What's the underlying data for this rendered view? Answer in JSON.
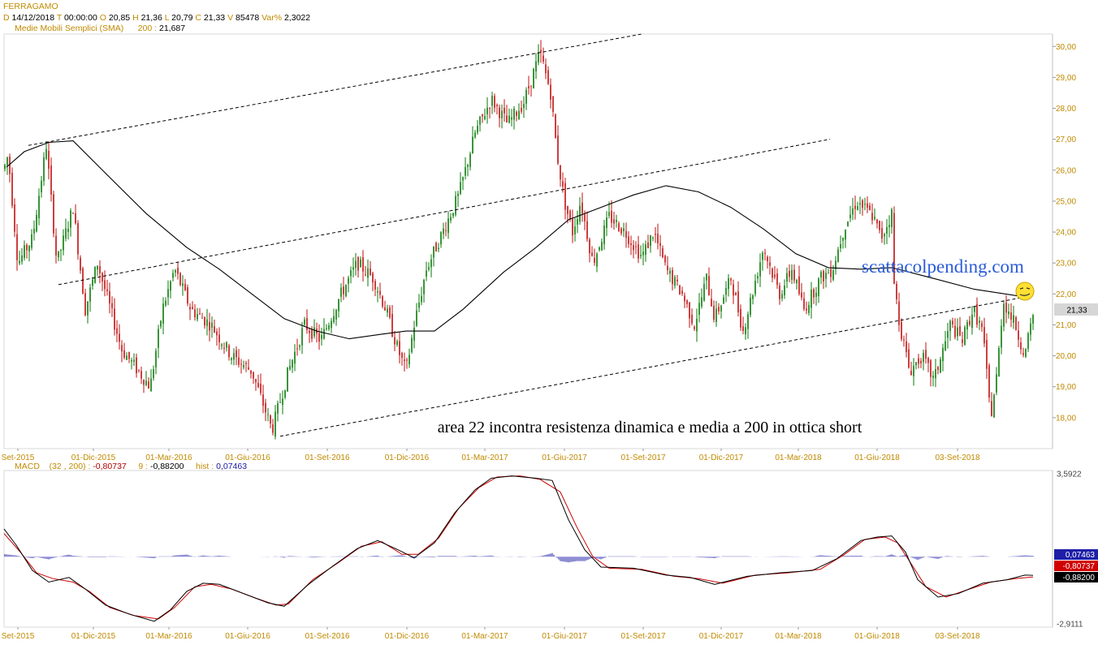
{
  "header": {
    "instrument": "FERRAGAMO",
    "date_label": "D",
    "date": "14/12/2018",
    "time_label": "T",
    "time": "00:00:00",
    "open_label": "O",
    "open": "20,85",
    "high_label": "H",
    "high": "21,36",
    "low_label": "L",
    "low": "20,79",
    "close_label": "C",
    "close": "21,33",
    "volume_label": "V",
    "volume": "85478",
    "var_label": "Var%",
    "var": "2,3022",
    "sma_label": "Medie Mobili Semplici (SMA)",
    "sma_period": "200 :",
    "sma_value": "21,687"
  },
  "macd_header": {
    "name": "MACD",
    "params": "(32 , 200) :",
    "macd_value": "-0,80737",
    "signal_period": "9 :",
    "signal_value": "-0,88200",
    "hist_label": "hist :",
    "hist_value": "0,07463"
  },
  "watermark": "scattacolpending.com",
  "annotation": "area 22 incontra resistenza dinamica e media a 200 in ottica short",
  "colors": {
    "up": "#0a7a0a",
    "down": "#c01010",
    "axis_label": "#c08a00",
    "hist": "#1e1ea8",
    "watermark": "#2a5bd8",
    "marker": "#ffe033"
  },
  "chart_data": [
    {
      "type": "candlestick",
      "title": "FERRAGAMO",
      "ylim": [
        17.0,
        30.4
      ],
      "y_ticks": [
        "18,00",
        "19,00",
        "20,00",
        "21,00",
        "22,00",
        "23,00",
        "24,00",
        "25,00",
        "26,00",
        "27,00",
        "28,00",
        "29,00",
        "30,00"
      ],
      "x_ticks": [
        "Set-2015",
        "01-Dic-2015",
        "01-Mar-2016",
        "01-Giu-2016",
        "01-Set-2016",
        "01-Dic-2016",
        "01-Mar-2017",
        "01-Giu-2017",
        "01-Set-2017",
        "01-Dic-2017",
        "01-Mar-2018",
        "01-Giu-2018",
        "03-Set-2018"
      ],
      "last_price_label": "21,33",
      "price_path": [
        [
          0,
          25.6
        ],
        [
          10,
          26.5
        ],
        [
          22,
          23.0
        ],
        [
          40,
          23.8
        ],
        [
          57,
          26.8
        ],
        [
          70,
          23.0
        ],
        [
          90,
          24.8
        ],
        [
          105,
          21.5
        ],
        [
          120,
          23.0
        ],
        [
          150,
          20.2
        ],
        [
          185,
          19.0
        ],
        [
          200,
          21.5
        ],
        [
          215,
          22.8
        ],
        [
          235,
          21.5
        ],
        [
          260,
          21.0
        ],
        [
          285,
          20.0
        ],
        [
          310,
          19.5
        ],
        [
          335,
          17.6
        ],
        [
          355,
          19.5
        ],
        [
          375,
          21.0
        ],
        [
          395,
          20.5
        ],
        [
          420,
          22.0
        ],
        [
          440,
          23.0
        ],
        [
          460,
          22.5
        ],
        [
          475,
          21.5
        ],
        [
          490,
          20.2
        ],
        [
          500,
          19.5
        ],
        [
          510,
          21.0
        ],
        [
          525,
          22.8
        ],
        [
          545,
          24.0
        ],
        [
          565,
          25.2
        ],
        [
          585,
          27.2
        ],
        [
          605,
          28.3
        ],
        [
          625,
          27.5
        ],
        [
          645,
          28.2
        ],
        [
          665,
          29.8
        ],
        [
          678,
          28.5
        ],
        [
          686,
          26.5
        ],
        [
          695,
          25.0
        ],
        [
          705,
          24.0
        ],
        [
          715,
          25.0
        ],
        [
          730,
          23.0
        ],
        [
          750,
          24.5
        ],
        [
          770,
          24.0
        ],
        [
          790,
          23.2
        ],
        [
          805,
          24.0
        ],
        [
          820,
          22.8
        ],
        [
          840,
          22.0
        ],
        [
          855,
          21.0
        ],
        [
          870,
          22.5
        ],
        [
          880,
          21.2
        ],
        [
          900,
          22.5
        ],
        [
          915,
          20.8
        ],
        [
          940,
          23.5
        ],
        [
          960,
          22.0
        ],
        [
          975,
          22.8
        ],
        [
          990,
          21.5
        ],
        [
          1010,
          22.5
        ],
        [
          1025,
          22.8
        ],
        [
          1040,
          24.2
        ],
        [
          1055,
          25.0
        ],
        [
          1075,
          24.5
        ],
        [
          1085,
          23.8
        ],
        [
          1098,
          24.6
        ],
        [
          1100,
          22.5
        ],
        [
          1108,
          21.0
        ],
        [
          1120,
          19.5
        ],
        [
          1135,
          20.0
        ],
        [
          1150,
          19.2
        ],
        [
          1170,
          21.0
        ],
        [
          1185,
          20.5
        ],
        [
          1198,
          21.5
        ],
        [
          1210,
          20.8
        ],
        [
          1220,
          18.0
        ],
        [
          1228,
          19.5
        ],
        [
          1235,
          21.8
        ],
        [
          1250,
          21.0
        ],
        [
          1262,
          20.0
        ],
        [
          1272,
          21.3
        ]
      ],
      "sma_200_path": [
        [
          8,
          26.1
        ],
        [
          30,
          26.6
        ],
        [
          60,
          26.9
        ],
        [
          90,
          26.95
        ],
        [
          130,
          25.9
        ],
        [
          180,
          24.6
        ],
        [
          230,
          23.5
        ],
        [
          270,
          22.8
        ],
        [
          310,
          22.0
        ],
        [
          350,
          21.2
        ],
        [
          390,
          20.8
        ],
        [
          430,
          20.55
        ],
        [
          470,
          20.7
        ],
        [
          500,
          20.8
        ],
        [
          535,
          20.8
        ],
        [
          570,
          21.5
        ],
        [
          620,
          22.7
        ],
        [
          660,
          23.5
        ],
        [
          700,
          24.4
        ],
        [
          740,
          24.8
        ],
        [
          780,
          25.2
        ],
        [
          820,
          25.5
        ],
        [
          860,
          25.3
        ],
        [
          900,
          24.8
        ],
        [
          940,
          24.1
        ],
        [
          980,
          23.3
        ],
        [
          1020,
          22.85
        ],
        [
          1060,
          22.8
        ],
        [
          1098,
          22.85
        ],
        [
          1150,
          22.5
        ],
        [
          1200,
          22.15
        ],
        [
          1262,
          21.9
        ]
      ],
      "trendlines": [
        {
          "style": "dashed",
          "from": [
            35,
            26.8
          ],
          "to": [
            790,
            30.4
          ]
        },
        {
          "style": "dashed",
          "from": [
            72,
            22.3
          ],
          "to": [
            1022,
            27.0
          ]
        },
        {
          "style": "dashed",
          "from": [
            345,
            17.4
          ],
          "to": [
            1262,
            21.9
          ]
        }
      ]
    },
    {
      "type": "line",
      "title": "MACD",
      "ylim": [
        -2.9111,
        3.5922
      ],
      "y_ticks": [
        "3,5922",
        "-2,9111"
      ],
      "x_ticks": [
        "Set-2015",
        "01-Dic-2015",
        "01-Mar-2016",
        "01-Giu-2016",
        "01-Set-2016",
        "01-Dic-2016",
        "01-Mar-2017",
        "01-Giu-2017",
        "01-Set-2017",
        "01-Dic-2017",
        "01-Mar-2018",
        "01-Giu-2018",
        "03-Set-2018"
      ],
      "value_labels": [
        "0,07463",
        "-0,80737",
        "-0,88200"
      ],
      "series": [
        {
          "name": "MACD",
          "color": "#000000",
          "values": [
            [
              5,
              1.2
            ],
            [
              20,
              0.5
            ],
            [
              40,
              -0.6
            ],
            [
              60,
              -1.1
            ],
            [
              85,
              -0.9
            ],
            [
              105,
              -1.4
            ],
            [
              130,
              -2.1
            ],
            [
              160,
              -2.5
            ],
            [
              190,
              -2.8
            ],
            [
              210,
              -2.3
            ],
            [
              230,
              -1.5
            ],
            [
              250,
              -1.15
            ],
            [
              270,
              -1.2
            ],
            [
              300,
              -1.6
            ],
            [
              330,
              -2.0
            ],
            [
              350,
              -2.15
            ],
            [
              380,
              -1.2
            ],
            [
              410,
              -0.4
            ],
            [
              440,
              0.35
            ],
            [
              465,
              0.7
            ],
            [
              490,
              0.3
            ],
            [
              510,
              -0.05
            ],
            [
              535,
              0.6
            ],
            [
              560,
              1.9
            ],
            [
              585,
              2.9
            ],
            [
              605,
              3.4
            ],
            [
              630,
              3.5
            ],
            [
              660,
              3.4
            ],
            [
              680,
              3.3
            ],
            [
              700,
              1.6
            ],
            [
              720,
              0.3
            ],
            [
              740,
              -0.45
            ],
            [
              780,
              -0.5
            ],
            [
              820,
              -0.8
            ],
            [
              850,
              -0.9
            ],
            [
              880,
              -1.2
            ],
            [
              920,
              -0.85
            ],
            [
              960,
              -0.7
            ],
            [
              1000,
              -0.6
            ],
            [
              1030,
              -0.1
            ],
            [
              1060,
              0.7
            ],
            [
              1080,
              0.85
            ],
            [
              1098,
              0.9
            ],
            [
              1115,
              0.2
            ],
            [
              1130,
              -1.0
            ],
            [
              1155,
              -1.75
            ],
            [
              1180,
              -1.6
            ],
            [
              1210,
              -1.15
            ],
            [
              1240,
              -1.0
            ],
            [
              1262,
              -0.8
            ],
            [
              1272,
              -0.81
            ]
          ]
        },
        {
          "name": "9",
          "color": "#cc0000",
          "values": [
            [
              5,
              1.0
            ],
            [
              25,
              0.2
            ],
            [
              45,
              -0.7
            ],
            [
              65,
              -0.95
            ],
            [
              90,
              -1.1
            ],
            [
              110,
              -1.5
            ],
            [
              135,
              -2.2
            ],
            [
              165,
              -2.55
            ],
            [
              195,
              -2.7
            ],
            [
              215,
              -2.2
            ],
            [
              240,
              -1.3
            ],
            [
              260,
              -1.2
            ],
            [
              285,
              -1.4
            ],
            [
              315,
              -1.8
            ],
            [
              340,
              -2.1
            ],
            [
              355,
              -2.05
            ],
            [
              385,
              -1.0
            ],
            [
              415,
              -0.3
            ],
            [
              445,
              0.45
            ],
            [
              470,
              0.65
            ],
            [
              495,
              0.1
            ],
            [
              515,
              0.1
            ],
            [
              540,
              0.8
            ],
            [
              565,
              2.1
            ],
            [
              590,
              3.0
            ],
            [
              612,
              3.45
            ],
            [
              640,
              3.5
            ],
            [
              665,
              3.35
            ],
            [
              690,
              2.8
            ],
            [
              710,
              1.3
            ],
            [
              730,
              0.0
            ],
            [
              750,
              -0.5
            ],
            [
              790,
              -0.55
            ],
            [
              830,
              -0.85
            ],
            [
              860,
              -0.95
            ],
            [
              890,
              -1.15
            ],
            [
              930,
              -0.8
            ],
            [
              970,
              -0.7
            ],
            [
              1010,
              -0.55
            ],
            [
              1040,
              0.1
            ],
            [
              1065,
              0.75
            ],
            [
              1090,
              0.85
            ],
            [
              1105,
              0.6
            ],
            [
              1120,
              -0.2
            ],
            [
              1140,
              -1.3
            ],
            [
              1165,
              -1.75
            ],
            [
              1190,
              -1.45
            ],
            [
              1220,
              -1.1
            ],
            [
              1250,
              -0.95
            ],
            [
              1272,
              -0.88
            ]
          ]
        }
      ],
      "histogram_range": [
        -0.25,
        0.15
      ]
    }
  ]
}
